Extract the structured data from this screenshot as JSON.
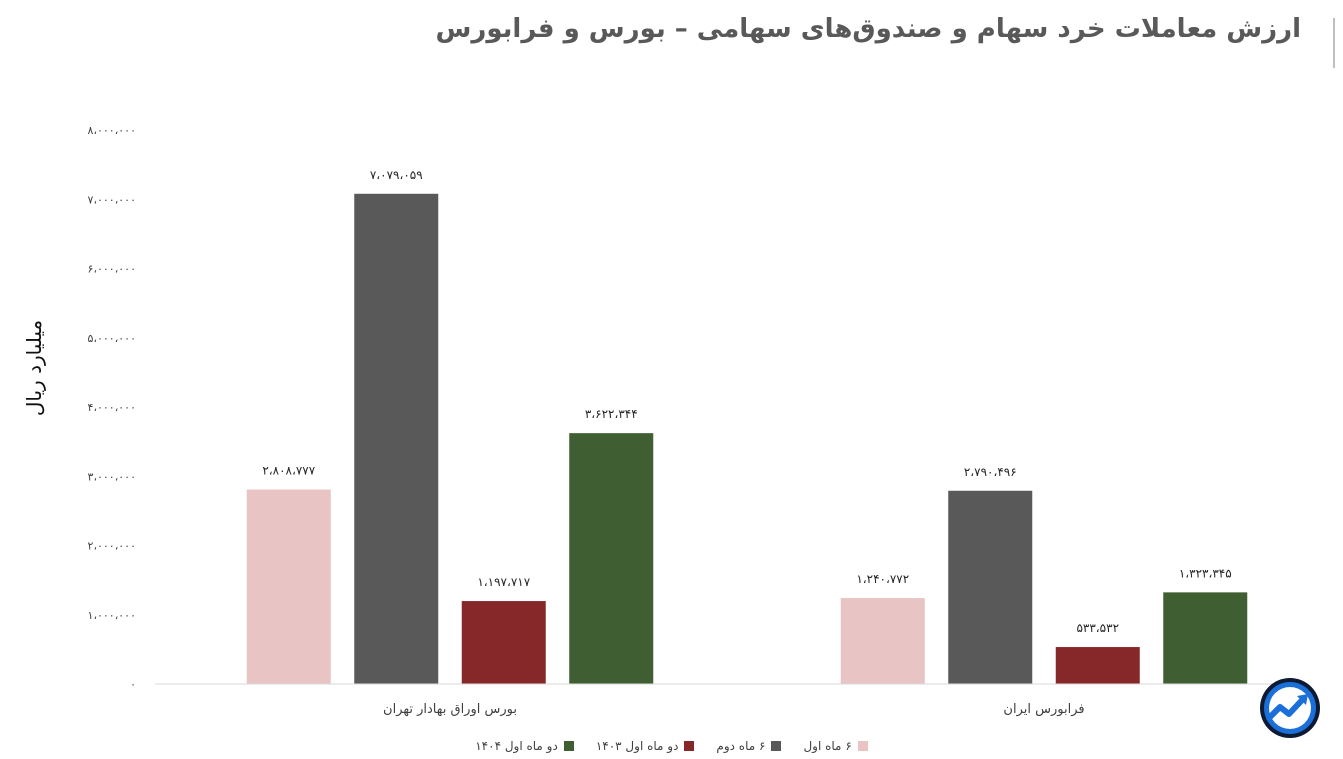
{
  "chart_data": {
    "type": "bar",
    "title": "ارزش معاملات خرد سهام و صندوق‌های سهامی – بورس و فرابورس",
    "ylabel": "میلیارد ریال",
    "xlabel": "",
    "ylim": [
      0,
      8000000
    ],
    "yticks": [
      0,
      1000000,
      2000000,
      3000000,
      4000000,
      5000000,
      6000000,
      7000000,
      8000000
    ],
    "ytick_labels": [
      "۰",
      "۱،۰۰۰،۰۰۰",
      "۲،۰۰۰،۰۰۰",
      "۳،۰۰۰،۰۰۰",
      "۴،۰۰۰،۰۰۰",
      "۵،۰۰۰،۰۰۰",
      "۶،۰۰۰،۰۰۰",
      "۷،۰۰۰،۰۰۰",
      "۸،۰۰۰،۰۰۰"
    ],
    "categories": [
      "بورس اوراق بهادار تهران",
      "فرابورس ایران"
    ],
    "grid": false,
    "legend_position": "bottom",
    "series": [
      {
        "name": "۶ ماه اول",
        "color": "#e8c4c4",
        "values": [
          2808777,
          1240772
        ],
        "labels": [
          "۲،۸۰۸،۷۷۷",
          "۱،۲۴۰،۷۷۲"
        ]
      },
      {
        "name": "۶ ماه دوم",
        "color": "#595959",
        "values": [
          7079059,
          2790496
        ],
        "labels": [
          "۷،۰۷۹،۰۵۹",
          "۲،۷۹۰،۴۹۶"
        ]
      },
      {
        "name": "دو ماه اول ۱۴۰۳",
        "color": "#862829",
        "values": [
          1197717,
          533532
        ],
        "labels": [
          "۱،۱۹۷،۷۱۷",
          "۵۳۳،۵۳۲"
        ]
      },
      {
        "name": "دو ماه اول ۱۴۰۴",
        "color": "#3f5f32",
        "values": [
          3622344,
          1323345
        ],
        "labels": [
          "۳،۶۲۲،۳۴۴",
          "۱،۳۲۳،۳۴۵"
        ]
      }
    ]
  },
  "logo": {
    "icon": "trend-arrow-logo-icon",
    "color": "#1b6fd8"
  }
}
